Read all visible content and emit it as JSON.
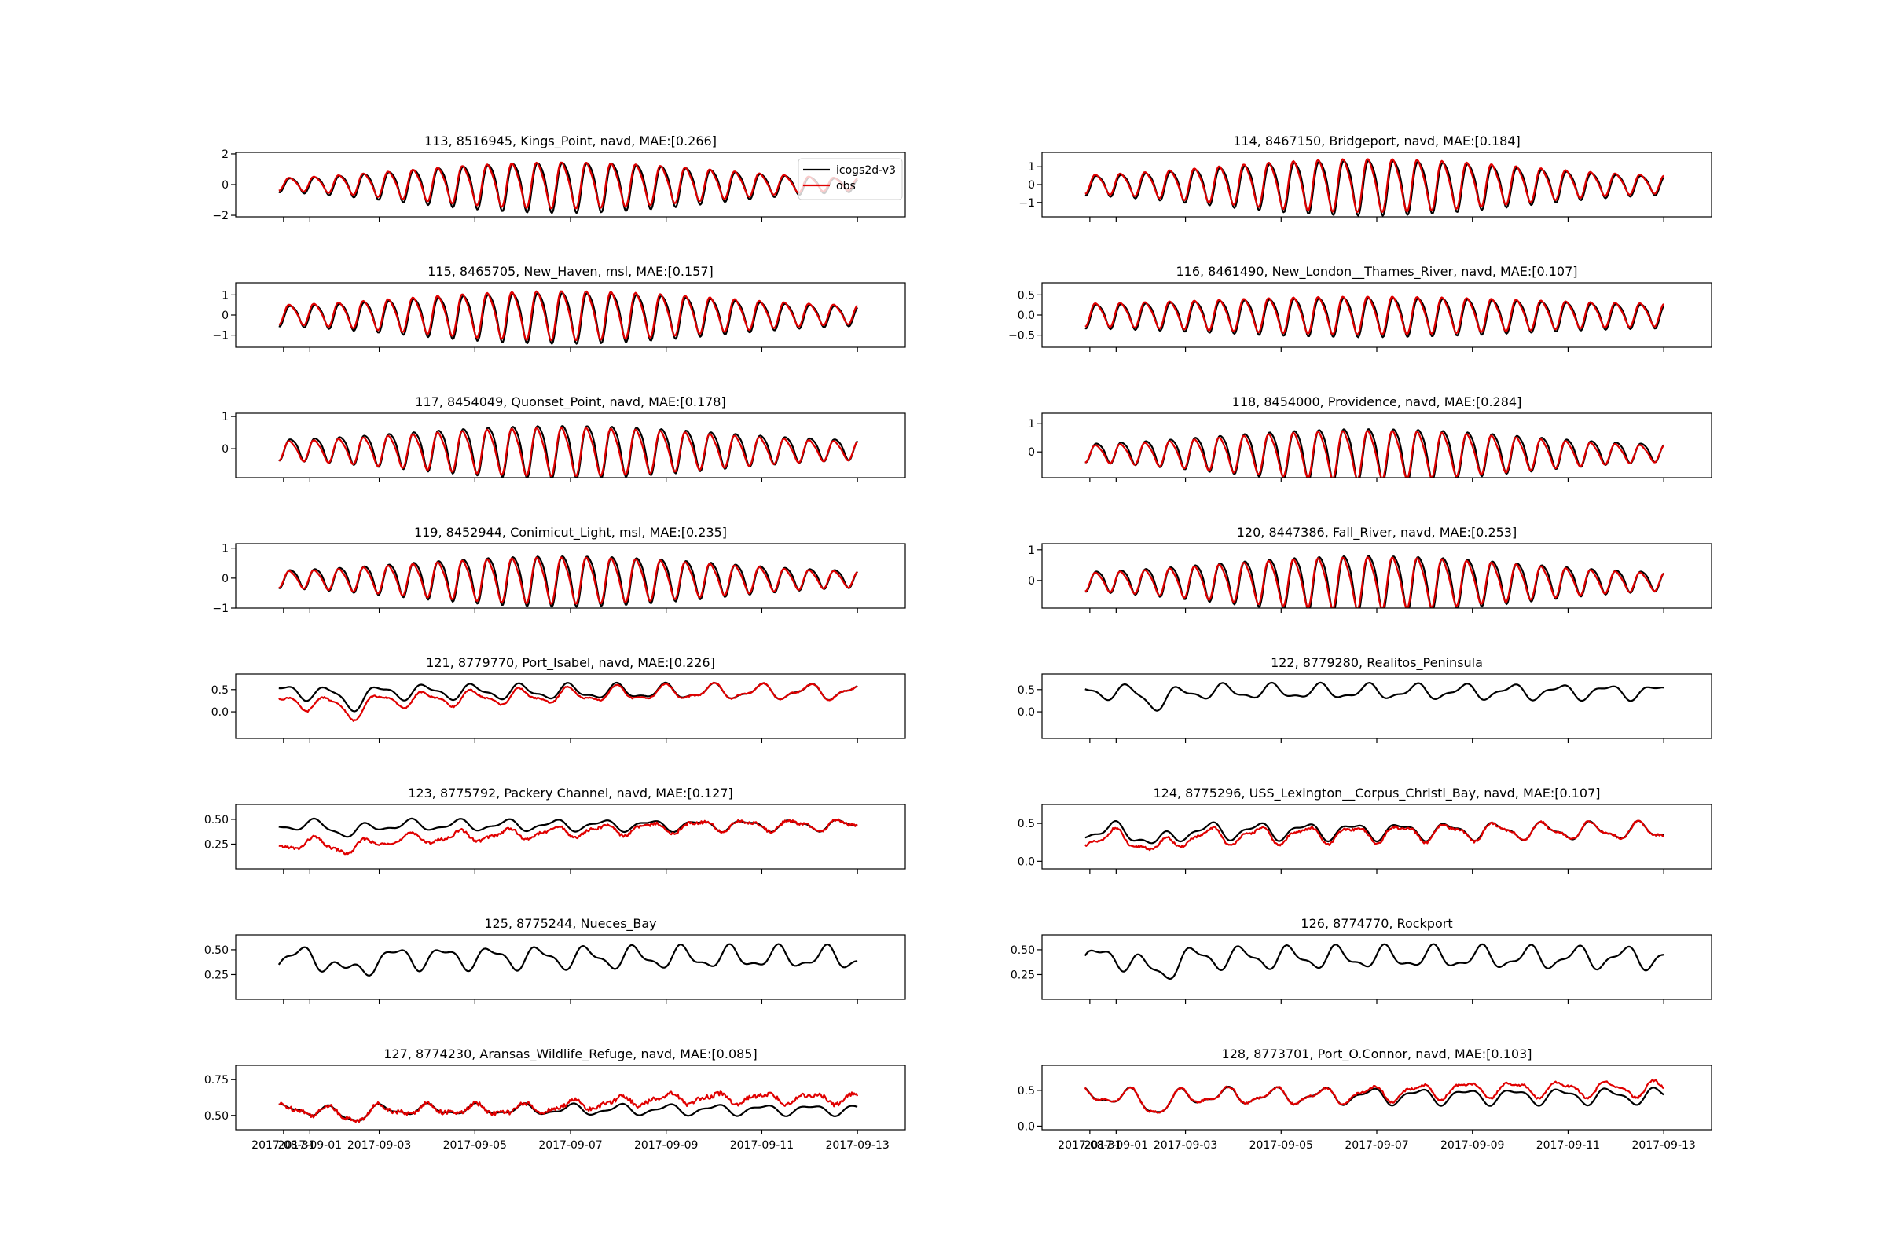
{
  "chart_data": {
    "type": "line",
    "legend": {
      "placement": "top-right",
      "entries": [
        {
          "label": "icogs2d-v3",
          "color": "#000000"
        },
        {
          "label": "obs",
          "color": "#e00000"
        }
      ]
    },
    "x_tick_labels": [
      "2017-08-31",
      "2017-09-01",
      "2017-09-03",
      "2017-09-05",
      "2017-09-07",
      "2017-09-09",
      "2017-09-11",
      "2017-09-13"
    ],
    "x_range_days": [
      0,
      14
    ],
    "panels": [
      {
        "title": "113, 8516945, Kings_Point, navd, MAE:[0.266]",
        "yticks": [
          "2",
          "0",
          "−2"
        ],
        "ytick_values": [
          2,
          0,
          -2
        ],
        "ylim": [
          -2.1,
          2.1
        ],
        "wave": "tide",
        "amp": 1.0,
        "spring": 0.6,
        "obs_offset": 0.05,
        "obs_scale": 0.9,
        "legend": true
      },
      {
        "title": "114, 8467150, Bridgeport, navd, MAE:[0.184]",
        "yticks": [
          "1",
          "0",
          "−1"
        ],
        "ytick_values": [
          1,
          0,
          -1
        ],
        "ylim": [
          -1.8,
          1.8
        ],
        "wave": "tide",
        "amp": 1.0,
        "spring": 0.5,
        "obs_offset": 0.05,
        "obs_scale": 0.95
      },
      {
        "title": "115, 8465705, New_Haven, msl, MAE:[0.157]",
        "yticks": [
          "1",
          "0",
          "−1"
        ],
        "ytick_values": [
          1,
          0,
          -1
        ],
        "ylim": [
          -1.6,
          1.6
        ],
        "wave": "tide",
        "amp": 0.85,
        "spring": 0.45,
        "obs_offset": 0.05,
        "obs_scale": 0.95
      },
      {
        "title": "116, 8461490, New_London__Thames_River, navd, MAE:[0.107]",
        "yticks": [
          "0.5",
          "0.0",
          "−0.5"
        ],
        "ytick_values": [
          0.5,
          0.0,
          -0.5
        ],
        "ylim": [
          -0.8,
          0.8
        ],
        "wave": "tide",
        "amp": 0.38,
        "spring": 0.25,
        "obs_offset": 0.02,
        "obs_scale": 0.95
      },
      {
        "title": "117, 8454049, Quonset_Point, navd, MAE:[0.178]",
        "yticks": [
          "1",
          "0"
        ],
        "ytick_values": [
          1,
          0
        ],
        "ylim": [
          -0.9,
          1.1
        ],
        "wave": "tide",
        "amp": 0.55,
        "spring": 0.45,
        "obs_offset": -0.05,
        "obs_scale": 0.9
      },
      {
        "title": "118, 8454000, Providence, navd, MAE:[0.284]",
        "yticks": [
          "1",
          "0"
        ],
        "ytick_values": [
          1,
          0
        ],
        "ylim": [
          -0.9,
          1.35
        ],
        "wave": "tide",
        "amp": 0.6,
        "spring": 0.5,
        "obs_offset": -0.05,
        "obs_scale": 0.9
      },
      {
        "title": "119, 8452944, Conimicut_Light, msl, MAE:[0.235]",
        "yticks": [
          "1",
          "0",
          "−1"
        ],
        "ytick_values": [
          1,
          0,
          -1
        ],
        "ylim": [
          -1.0,
          1.15
        ],
        "wave": "tide",
        "amp": 0.55,
        "spring": 0.5,
        "obs_offset": -0.03,
        "obs_scale": 0.9
      },
      {
        "title": "120, 8447386, Fall_River, navd, MAE:[0.253]",
        "yticks": [
          "1",
          "0"
        ],
        "ytick_values": [
          1,
          0
        ],
        "ylim": [
          -0.9,
          1.2
        ],
        "wave": "tide",
        "amp": 0.6,
        "spring": 0.5,
        "obs_offset": -0.03,
        "obs_scale": 0.9
      },
      {
        "title": "121, 8779770, Port_Isabel, navd, MAE:[0.226]",
        "yticks": [
          "0.5",
          "0.0"
        ],
        "ytick_values": [
          0.5,
          0.0
        ],
        "ylim": [
          -0.6,
          0.85
        ],
        "wave": "gulf",
        "base": 0.45,
        "amp": 0.18,
        "obs": true,
        "obs_shift": -0.25
      },
      {
        "title": "122, 8779280, Realitos_Peninsula",
        "yticks": [
          "0.5",
          "0.0"
        ],
        "ytick_values": [
          0.5,
          0.0
        ],
        "ylim": [
          -0.6,
          0.85
        ],
        "wave": "gulf",
        "base": 0.45,
        "amp": 0.18,
        "obs": false
      },
      {
        "title": "123, 8775792, Packery Channel, navd, MAE:[0.127]",
        "yticks": [
          "0.50",
          "0.25"
        ],
        "ytick_values": [
          0.5,
          0.25
        ],
        "ylim": [
          0.0,
          0.65
        ],
        "wave": "gulf",
        "base": 0.44,
        "amp": 0.06,
        "obs": true,
        "obs_shift": -0.2
      },
      {
        "title": "124, 8775296, USS_Lexington__Corpus_Christi_Bay, navd, MAE:[0.107]",
        "yticks": [
          "0.5",
          "0.0"
        ],
        "ytick_values": [
          0.5,
          0.0
        ],
        "ylim": [
          -0.1,
          0.75
        ],
        "wave": "gulf",
        "base": 0.4,
        "amp": 0.12,
        "obs": true,
        "obs_shift": -0.1
      },
      {
        "title": "125, 8775244, Nueces_Bay",
        "yticks": [
          "0.50",
          "0.25"
        ],
        "ytick_values": [
          0.5,
          0.25
        ],
        "ylim": [
          0.0,
          0.65
        ],
        "wave": "gulf",
        "base": 0.42,
        "amp": 0.12,
        "obs": false
      },
      {
        "title": "126, 8774770, Rockport",
        "yticks": [
          "0.50",
          "0.25"
        ],
        "ytick_values": [
          0.5,
          0.25
        ],
        "ylim": [
          0.0,
          0.65
        ],
        "wave": "gulf",
        "base": 0.42,
        "amp": 0.12,
        "obs": false
      },
      {
        "title": "127, 8774230, Aransas_Wildlife_Refuge, navd, MAE:[0.085]",
        "yticks": [
          "0.75",
          "0.50"
        ],
        "ytick_values": [
          0.75,
          0.5
        ],
        "ylim": [
          0.4,
          0.85
        ],
        "wave": "gulf",
        "base": 0.54,
        "amp": 0.04,
        "obs": true,
        "obs_shift": 0.08,
        "xlabels": true
      },
      {
        "title": "128, 8773701, Port_O.Connor, navd, MAE:[0.103]",
        "yticks": [
          "0.5",
          "0.0"
        ],
        "ytick_values": [
          0.5,
          0.0
        ],
        "ylim": [
          -0.05,
          0.85
        ],
        "wave": "gulf",
        "base": 0.42,
        "amp": 0.12,
        "obs": true,
        "obs_shift": 0.1,
        "xlabels": true
      }
    ]
  }
}
